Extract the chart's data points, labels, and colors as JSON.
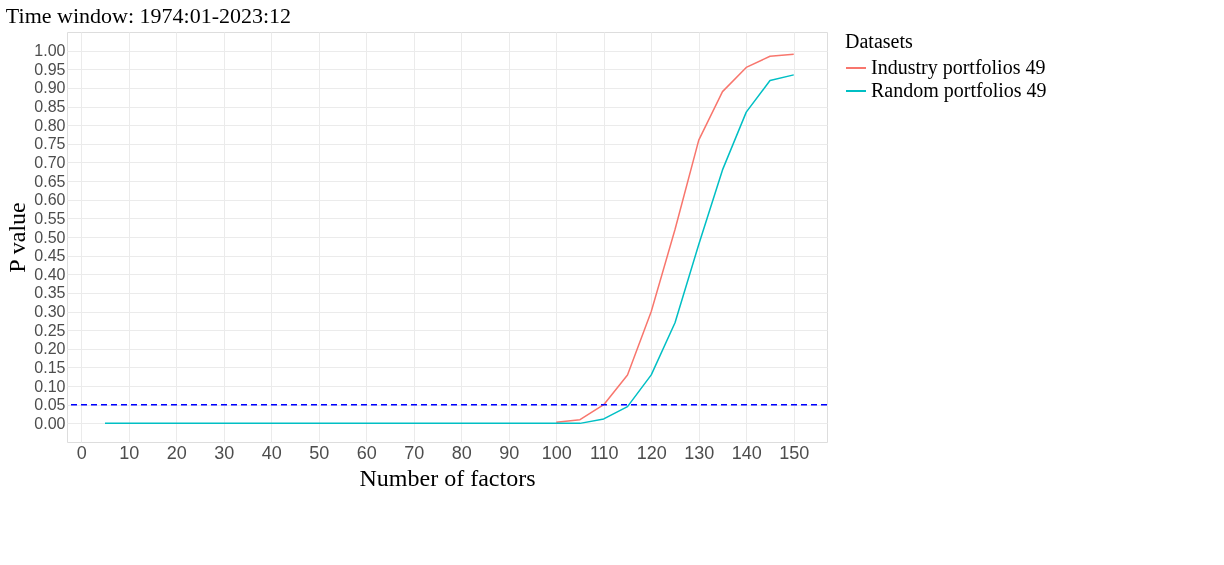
{
  "chart_data": {
    "type": "line",
    "title": "Time window: 1974:01-2023:12",
    "xlabel": "Number of factors",
    "ylabel": "P value",
    "legend_title": "Datasets",
    "x": [
      5,
      10,
      15,
      20,
      25,
      30,
      35,
      40,
      45,
      50,
      55,
      60,
      65,
      70,
      75,
      80,
      85,
      90,
      95,
      100,
      105,
      110,
      115,
      120,
      125,
      130,
      135,
      140,
      145,
      150
    ],
    "series": [
      {
        "name": "Industry portfolios 49",
        "color": "#f8766d",
        "values": [
          null,
          null,
          null,
          null,
          null,
          null,
          null,
          null,
          null,
          null,
          null,
          null,
          null,
          null,
          null,
          null,
          null,
          null,
          null,
          0.003,
          0.01,
          0.05,
          0.13,
          0.3,
          0.52,
          0.76,
          0.89,
          0.955,
          0.985,
          0.99
        ]
      },
      {
        "name": "Random portfolios 49",
        "color": "#00bfc4",
        "values": [
          0,
          0,
          0,
          0,
          0,
          0,
          0,
          0,
          0,
          0,
          0,
          0,
          0,
          0,
          0,
          0,
          0,
          0,
          0,
          0,
          0,
          0.012,
          0.045,
          0.13,
          0.27,
          0.48,
          0.68,
          0.835,
          0.92,
          0.935
        ]
      }
    ],
    "xlim": [
      -3,
      157
    ],
    "xticks": [
      0,
      10,
      20,
      30,
      40,
      50,
      60,
      70,
      80,
      90,
      100,
      110,
      120,
      130,
      140,
      150
    ],
    "ylim": [
      -0.05,
      1.05
    ],
    "yticks": [
      {
        "value": 0,
        "label": "0.00"
      },
      {
        "value": 0.05,
        "label": "0.05"
      },
      {
        "value": 0.1,
        "label": "0.10"
      },
      {
        "value": 0.15,
        "label": "0.15"
      },
      {
        "value": 0.2,
        "label": "0.20"
      },
      {
        "value": 0.25,
        "label": "0.25"
      },
      {
        "value": 0.3,
        "label": "0.30"
      },
      {
        "value": 0.35,
        "label": "0.35"
      },
      {
        "value": 0.4,
        "label": "0.40"
      },
      {
        "value": 0.45,
        "label": "0.45"
      },
      {
        "value": 0.5,
        "label": "0.50"
      },
      {
        "value": 0.55,
        "label": "0.55"
      },
      {
        "value": 0.6,
        "label": "0.60"
      },
      {
        "value": 0.65,
        "label": "0.65"
      },
      {
        "value": 0.7,
        "label": "0.70"
      },
      {
        "value": 0.75,
        "label": "0.75"
      },
      {
        "value": 0.8,
        "label": "0.80"
      },
      {
        "value": 0.85,
        "label": "0.85"
      },
      {
        "value": 0.9,
        "label": "0.90"
      },
      {
        "value": 0.95,
        "label": "0.95"
      },
      {
        "value": 1,
        "label": "1.00"
      }
    ],
    "ref_lines": [
      {
        "axis": "y",
        "value": 0.05,
        "color": "#0000ff",
        "line_style": "dashed"
      }
    ],
    "grid": true,
    "legend": "right",
    "line_style": "solid",
    "marker": "none"
  }
}
